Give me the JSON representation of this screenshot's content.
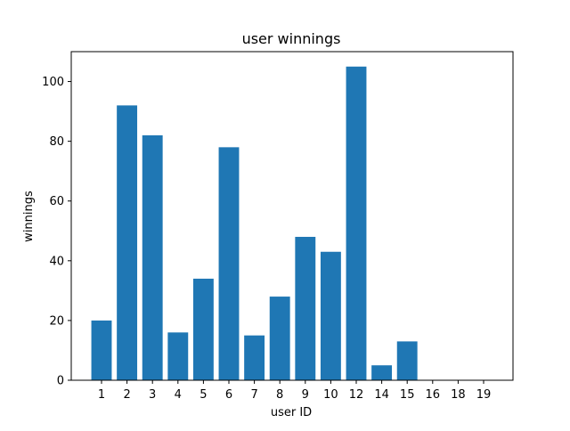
{
  "chart_data": {
    "type": "bar",
    "title": "user winnings",
    "xlabel": "user ID",
    "ylabel": "winnings",
    "categories": [
      "1",
      "2",
      "3",
      "4",
      "5",
      "6",
      "7",
      "8",
      "9",
      "10",
      "12",
      "14",
      "15",
      "16",
      "18",
      "19"
    ],
    "values": [
      20,
      92,
      82,
      16,
      34,
      78,
      15,
      28,
      48,
      43,
      105,
      5,
      13,
      0,
      0,
      0
    ],
    "ylim": [
      0,
      110
    ],
    "yticks": [
      0,
      20,
      40,
      60,
      80,
      100
    ],
    "grid": false,
    "bar_color": "#1f77b4"
  }
}
